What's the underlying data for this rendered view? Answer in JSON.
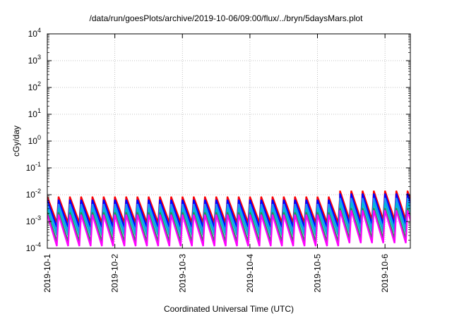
{
  "chart_data": {
    "type": "line",
    "title": "/data/run/goesPlots/archive/2019-10-06/09:00/flux/../bryn/5daysMars.plot",
    "xlabel": "Coordinated Universal Time (UTC)",
    "ylabel": "cGy/day",
    "y_scale": "log",
    "ylim": [
      0.0001,
      10000
    ],
    "y_ticks": [
      {
        "base": "10",
        "exp": "4",
        "value": 10000
      },
      {
        "base": "10",
        "exp": "3",
        "value": 1000
      },
      {
        "base": "10",
        "exp": "2",
        "value": 100
      },
      {
        "base": "10",
        "exp": "1",
        "value": 10
      },
      {
        "base": "10",
        "exp": "0",
        "value": 1
      },
      {
        "base": "10",
        "exp": "-1",
        "value": 0.1
      },
      {
        "base": "10",
        "exp": "-2",
        "value": 0.01
      },
      {
        "base": "10",
        "exp": "-3",
        "value": 0.001
      },
      {
        "base": "10",
        "exp": "-4",
        "value": 0.0001
      }
    ],
    "xlim": [
      "2019-10-01T00:00",
      "2019-10-06T09:00"
    ],
    "x_ticks": [
      "2019-10-1",
      "2019-10-2",
      "2019-10-3",
      "2019-10-4",
      "2019-10-5",
      "2019-10-6"
    ],
    "grid": true,
    "sawtooth_period_hours": 4,
    "series": [
      {
        "color": "#ff0000",
        "peak_low": 0.0085,
        "peak_high": 0.014,
        "trough": 0.0009
      },
      {
        "color": "#0000ff",
        "peak_low": 0.0065,
        "peak_high": 0.011,
        "trough": 0.0006
      },
      {
        "color": "#1e90ff",
        "peak_low": 0.0045,
        "peak_high": 0.0075,
        "trough": 0.0004
      },
      {
        "color": "#00bcd4",
        "peak_low": 0.0032,
        "peak_high": 0.005,
        "trough": 0.0003
      },
      {
        "color": "#2e8b57",
        "peak_low": 0.0022,
        "peak_high": 0.0032,
        "trough": 0.00018
      },
      {
        "color": "#ff00ff",
        "peak_low": 0.0018,
        "peak_high": 0.0026,
        "trough": 0.00012
      }
    ]
  }
}
